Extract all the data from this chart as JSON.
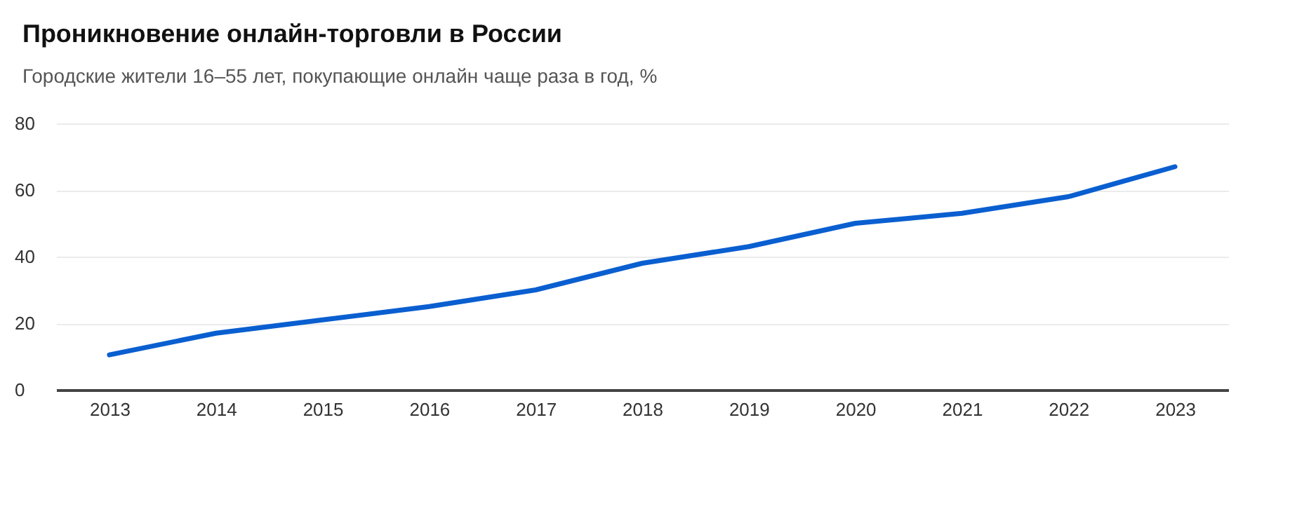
{
  "chart_data": {
    "type": "line",
    "title": "Проникновение онлайн-торговли в России",
    "subtitle": "Городские жители 16–55 лет, покупающие онлайн чаще раза в год, %",
    "categories": [
      "2013",
      "2014",
      "2015",
      "2016",
      "2017",
      "2018",
      "2019",
      "2020",
      "2021",
      "2022",
      "2023"
    ],
    "series": [
      {
        "color": "#0a5fd0",
        "values": [
          10.5,
          17,
          21,
          25,
          30,
          38,
          43,
          50,
          53,
          58,
          67
        ]
      }
    ],
    "ylim": [
      0,
      80
    ],
    "yticks": [
      0,
      20,
      40,
      60,
      80
    ],
    "grid": "y",
    "marker": "none",
    "line_style": "solid"
  }
}
